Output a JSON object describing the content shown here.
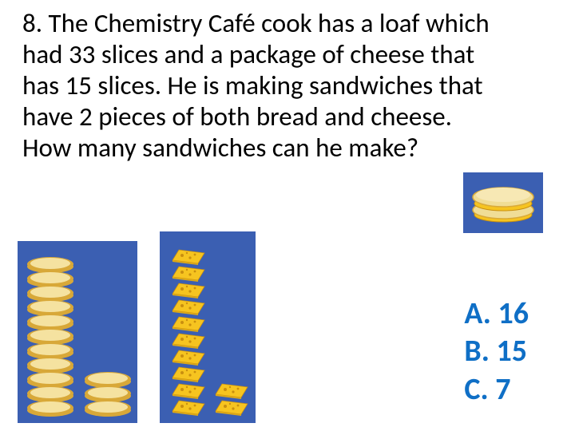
{
  "question": {
    "number": "8.",
    "text": "The Chemistry Café cook has a loaf which had 33 slices and a package of cheese that has 15 slices. He is making sandwiches that have 2 pieces of both bread and cheese. How many sandwiches can he make?",
    "fontsize": 33,
    "color": "#000000"
  },
  "answers": {
    "A": "A. 16",
    "B": "B. 15",
    "C": "C. 7",
    "color": "#0f6fc6",
    "fontsize": 38,
    "bold": true
  },
  "graphics": {
    "panel_bg": "#3b5fb2",
    "bread": {
      "crust_color": "#d8a838",
      "face_color": "#f5e2a0",
      "tall_stack_count": 11,
      "short_stack_count": 3
    },
    "cheese": {
      "fill_color": "#f6c420",
      "holes_color": "#c98f0f",
      "tall_stack_count": 10,
      "short_stack_count": 2
    },
    "sandwich": {
      "bread_color": "#f0dd96",
      "crust_color": "#d9aa3a",
      "cheese_color": "#f6c420"
    }
  }
}
